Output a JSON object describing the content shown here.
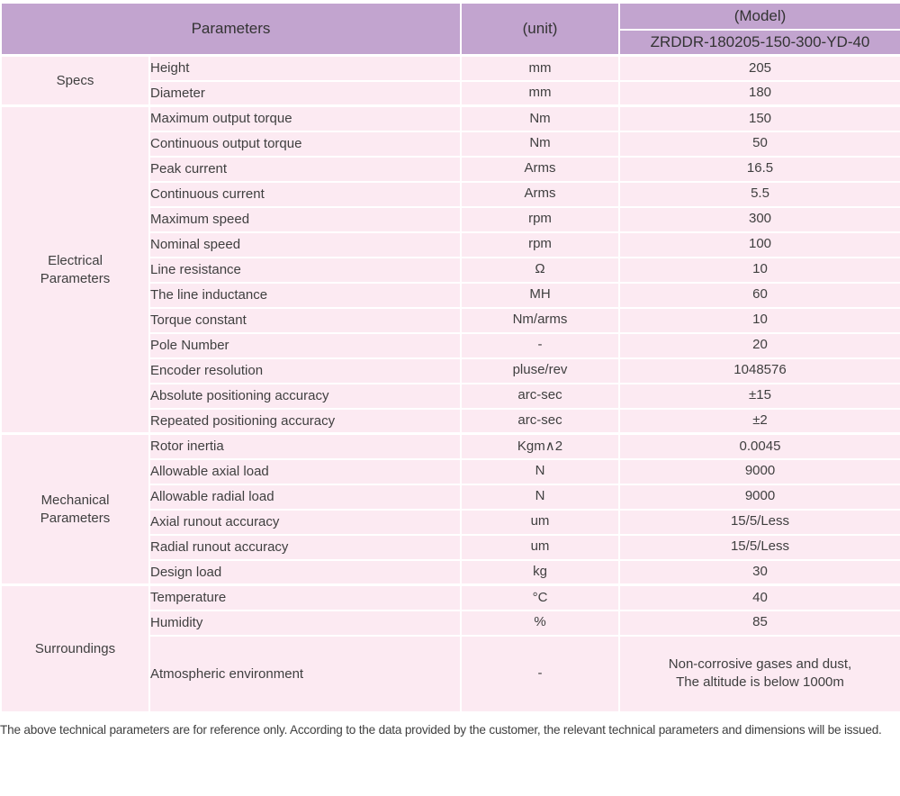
{
  "colors": {
    "header_bg": "#c2a4cf",
    "row_bg": "#fceaf2",
    "grid": "#ffffff",
    "header_text": "#333333",
    "body_text": "#3f3f3f"
  },
  "header": {
    "parameters_label": "Parameters",
    "unit_label": "(unit)",
    "model_label": "(Model)",
    "model_value": "ZRDDR-180205-150-300-YD-40"
  },
  "sections": [
    {
      "name": "Specs",
      "rows": [
        {
          "parameter": "Height",
          "unit": "mm",
          "value": "205"
        },
        {
          "parameter": "Diameter",
          "unit": "mm",
          "value": "180"
        }
      ]
    },
    {
      "name": "Electrical\nParameters",
      "rows": [
        {
          "parameter": "Maximum output torque",
          "unit": "Nm",
          "value": "150"
        },
        {
          "parameter": "Continuous output torque",
          "unit": "Nm",
          "value": "50"
        },
        {
          "parameter": "Peak current",
          "unit": "Arms",
          "value": "16.5"
        },
        {
          "parameter": "Continuous current",
          "unit": "Arms",
          "value": "5.5"
        },
        {
          "parameter": "Maximum speed",
          "unit": "rpm",
          "value": "300"
        },
        {
          "parameter": "Nominal speed",
          "unit": "rpm",
          "value": "100"
        },
        {
          "parameter": "Line resistance",
          "unit": "Ω",
          "value": "10"
        },
        {
          "parameter": "The line inductance",
          "unit": "MH",
          "value": "60"
        },
        {
          "parameter": "Torque constant",
          "unit": "Nm/arms",
          "value": "10"
        },
        {
          "parameter": "Pole Number",
          "unit": "-",
          "value": "20"
        },
        {
          "parameter": "Encoder resolution",
          "unit": "pluse/rev",
          "value": "1048576"
        },
        {
          "parameter": "Absolute positioning accuracy",
          "unit": "arc-sec",
          "value": "±15"
        },
        {
          "parameter": "Repeated positioning accuracy",
          "unit": "arc-sec",
          "value": "±2"
        }
      ]
    },
    {
      "name": "Mechanical\nParameters",
      "rows": [
        {
          "parameter": "Rotor inertia",
          "unit": "Kgm∧2",
          "value": "0.0045"
        },
        {
          "parameter": "Allowable axial load",
          "unit": "N",
          "value": "9000"
        },
        {
          "parameter": "Allowable radial load",
          "unit": "N",
          "value": "9000"
        },
        {
          "parameter": "Axial runout accuracy",
          "unit": "um",
          "value": "15/5/Less"
        },
        {
          "parameter": "Radial runout accuracy",
          "unit": "um",
          "value": "15/5/Less"
        },
        {
          "parameter": "Design load",
          "unit": "kg",
          "value": "30"
        }
      ]
    },
    {
      "name": "Surroundings",
      "rows": [
        {
          "parameter": "Temperature",
          "unit": "°C",
          "value": "40"
        },
        {
          "parameter": "Humidity",
          "unit": "%",
          "value": "85"
        },
        {
          "parameter": "Atmospheric environment",
          "unit": "-",
          "value": "Non-corrosive gases and dust,\nThe altitude is below 1000m",
          "tall": true
        }
      ]
    }
  ],
  "footer": {
    "note": "The above technical parameters are for reference only. According to the data provided by the customer, the relevant technical parameters and dimensions will be issued."
  }
}
